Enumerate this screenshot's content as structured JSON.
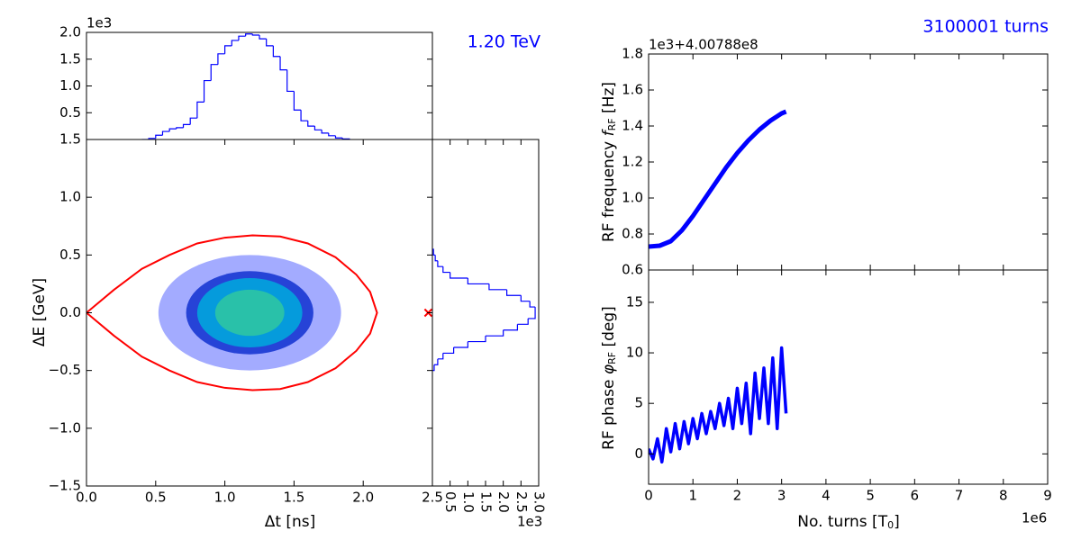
{
  "chart_data": [
    {
      "type": "histogram",
      "annotation": "1.20 TeV",
      "color": "#0000ff",
      "bins": [
        0.4,
        0.45,
        0.5,
        0.55,
        0.6,
        0.65,
        0.7,
        0.75,
        0.8,
        0.85,
        0.9,
        0.95,
        1.0,
        1.05,
        1.1,
        1.15,
        1.2,
        1.25,
        1.3,
        1.35,
        1.4,
        1.45,
        1.5,
        1.55,
        1.6,
        1.65,
        1.7,
        1.75,
        1.8,
        1.85,
        1.9
      ],
      "counts": [
        0,
        0.02,
        0.08,
        0.15,
        0.2,
        0.22,
        0.28,
        0.4,
        0.7,
        1.1,
        1.4,
        1.6,
        1.75,
        1.85,
        1.93,
        1.97,
        1.95,
        1.88,
        1.75,
        1.55,
        1.3,
        0.9,
        0.55,
        0.35,
        0.25,
        0.18,
        0.12,
        0.07,
        0.03,
        0.01
      ],
      "xlim": [
        0,
        2.5
      ],
      "ylim": [
        0,
        2.0
      ],
      "yticks": [
        0.5,
        {
          "value": 1,
          "label": "1.0"
        },
        1.5,
        {
          "value": 2,
          "label": "2.0"
        }
      ],
      "y_offset": "1e3"
    },
    {
      "type": "scatter",
      "xlabel": "Δt [ns]",
      "ylabel": "ΔE [GeV]",
      "xlim": [
        0,
        2.5
      ],
      "ylim": [
        -1.5,
        1.5
      ],
      "xticks": [
        {
          "value": 0,
          "label": "0.0"
        },
        0.5,
        {
          "value": 1,
          "label": "1.0"
        },
        1.5,
        {
          "value": 2,
          "label": "2.0"
        },
        2.5
      ],
      "yticks": [
        {
          "value": -1.5,
          "label": "−1.5"
        },
        {
          "value": -1,
          "label": "−1.0"
        },
        {
          "value": -0.5,
          "label": "−0.5"
        },
        {
          "value": 0,
          "label": "0.0"
        },
        0.5,
        {
          "value": 1,
          "label": "1.0"
        },
        1.5
      ],
      "density": [
        {
          "cx": 1.18,
          "cy": 0,
          "rx": 0.66,
          "ry": 0.5,
          "color": "#3344ff"
        },
        {
          "cx": 1.18,
          "cy": 0,
          "rx": 0.46,
          "ry": 0.36,
          "color": "#1030d0"
        },
        {
          "cx": 1.18,
          "cy": 0,
          "rx": 0.38,
          "ry": 0.3,
          "color": "#00aadd"
        },
        {
          "cx": 1.18,
          "cy": 0,
          "rx": 0.25,
          "ry": 0.2,
          "color": "#30c8a0"
        }
      ],
      "separatrix": {
        "color": "#ff0000",
        "x": [
          0,
          0.2,
          0.4,
          0.6,
          0.8,
          1.0,
          1.2,
          1.4,
          1.6,
          1.8,
          1.95,
          2.05,
          2.1,
          2.05,
          1.95,
          1.8,
          1.6,
          1.4,
          1.2,
          1.0,
          0.8,
          0.6,
          0.4,
          0.2,
          0
        ],
        "y": [
          0,
          0.2,
          0.38,
          0.5,
          0.6,
          0.65,
          0.67,
          0.66,
          0.6,
          0.48,
          0.33,
          0.18,
          0,
          -0.18,
          -0.33,
          -0.48,
          -0.6,
          -0.66,
          -0.67,
          -0.65,
          -0.6,
          -0.5,
          -0.38,
          -0.2,
          0
        ]
      },
      "marker": {
        "x": 2.47,
        "y": 0,
        "color": "#ff0000"
      }
    },
    {
      "type": "histogram",
      "orientation": "horizontal",
      "color": "#0000ff",
      "bins": [
        -0.5,
        -0.45,
        -0.4,
        -0.35,
        -0.3,
        -0.25,
        -0.2,
        -0.15,
        -0.1,
        -0.05,
        0,
        0.05,
        0.1,
        0.15,
        0.2,
        0.25,
        0.3,
        0.35,
        0.4,
        0.45,
        0.5,
        0.55
      ],
      "counts": [
        0.05,
        0.15,
        0.3,
        0.6,
        1.0,
        1.5,
        2.0,
        2.4,
        2.7,
        2.9,
        2.9,
        2.75,
        2.5,
        2.1,
        1.6,
        1.0,
        0.5,
        0.3,
        0.15,
        0.08,
        0.03
      ],
      "xlim": [
        0,
        3.0
      ],
      "ylim": [
        -1.5,
        1.5
      ],
      "xticks": [
        0.5,
        {
          "value": 1,
          "label": "1.0"
        },
        1.5,
        {
          "value": 2,
          "label": "2.0"
        },
        2.5,
        {
          "value": 3,
          "label": "3.0"
        }
      ],
      "x_offset": "1e3"
    },
    {
      "type": "line",
      "title": "3100001 turns",
      "color": "#0000ff",
      "ylabel": {
        "text": "RF frequency",
        "symbol": "f",
        "subscript": "RF",
        "unit": "[Hz]"
      },
      "x": [
        0,
        0.25,
        0.5,
        0.75,
        1.0,
        1.25,
        1.5,
        1.75,
        2.0,
        2.25,
        2.5,
        2.75,
        3.0,
        3.1
      ],
      "values": [
        0.73,
        0.735,
        0.76,
        0.82,
        0.9,
        0.99,
        1.08,
        1.17,
        1.25,
        1.32,
        1.38,
        1.43,
        1.47,
        1.48
      ],
      "xlim": [
        0,
        9
      ],
      "ylim": [
        0.6,
        1.8
      ],
      "xticks": [
        0,
        1,
        2,
        3,
        4,
        5,
        6,
        7,
        8,
        9
      ],
      "yticks": [
        0.6,
        0.8,
        {
          "value": 1,
          "label": "1.0"
        },
        1.2,
        1.4,
        1.6,
        1.8
      ],
      "y_offset": "1e3+4.00788e8"
    },
    {
      "type": "line",
      "color": "#0000ff",
      "ylabel": {
        "text": "RF phase",
        "symbol": "φ",
        "subscript": "RF",
        "unit": "[deg]"
      },
      "xlabel": {
        "text": "No. turns [T",
        "subscript": "0",
        "unit": "]"
      },
      "x": [
        0,
        0.1,
        0.2,
        0.3,
        0.4,
        0.5,
        0.6,
        0.7,
        0.8,
        0.9,
        1.0,
        1.1,
        1.2,
        1.3,
        1.4,
        1.5,
        1.6,
        1.7,
        1.8,
        1.9,
        2.0,
        2.1,
        2.2,
        2.3,
        2.4,
        2.5,
        2.6,
        2.7,
        2.8,
        2.9,
        3.0,
        3.1
      ],
      "values": [
        0.5,
        -0.5,
        1.5,
        -0.8,
        2.5,
        0.2,
        3.0,
        0.5,
        3.2,
        1.0,
        3.5,
        1.5,
        4.0,
        2.0,
        4.2,
        2.5,
        5.0,
        2.8,
        5.5,
        2.5,
        6.5,
        3.0,
        7.0,
        2.0,
        8.0,
        3.5,
        8.5,
        3.0,
        9.5,
        2.5,
        10.5,
        4.0
      ],
      "xlim": [
        0,
        9
      ],
      "ylim": [
        -3,
        18.2
      ],
      "xticks": [
        0,
        1,
        2,
        3,
        4,
        5,
        6,
        7,
        8,
        9
      ],
      "yticks": [
        0,
        5,
        10,
        15
      ],
      "x_offset": "1e6"
    }
  ]
}
